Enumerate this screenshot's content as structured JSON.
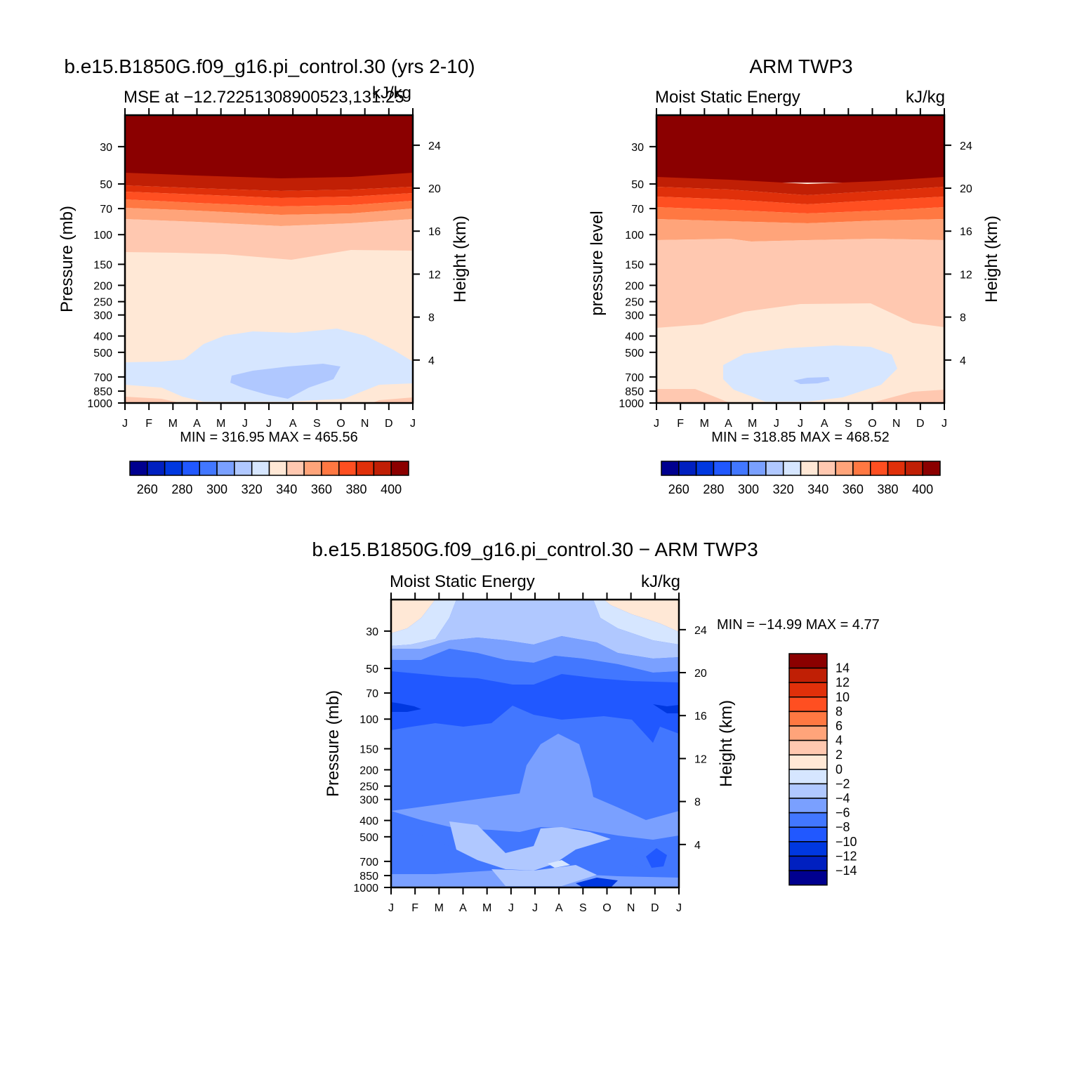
{
  "palette": [
    "#00008f",
    "#0020c0",
    "#0038e0",
    "#2158ff",
    "#4277ff",
    "#7aa0ff",
    "#b0c8ff",
    "#d6e6ff",
    "#ffe8d6",
    "#ffc8b0",
    "#ffa47a",
    "#ff7842",
    "#ff4f21",
    "#e0300a",
    "#c01f05",
    "#8b0000"
  ],
  "panels": [
    {
      "title": "b.e15.B1850G.f09_g16.pi_control.30 (yrs 2-10)",
      "sub_left": "MSE at −12.72251308900523,131.25",
      "sub_right": "kJ/kg",
      "ylabel": "Pressure (mb)",
      "y2label": "Height (km)",
      "stats": "MIN = 316.95 MAX = 465.56",
      "colorbar_labels": [
        "260",
        "280",
        "300",
        "320",
        "340",
        "360",
        "380",
        "400"
      ]
    },
    {
      "title": "ARM TWP3",
      "sub_left": "Moist Static Energy",
      "sub_right": "kJ/kg",
      "ylabel": "pressure level",
      "y2label": "Height (km)",
      "stats": "MIN = 318.85 MAX = 468.52",
      "colorbar_labels": [
        "260",
        "280",
        "300",
        "320",
        "340",
        "360",
        "380",
        "400"
      ]
    },
    {
      "title": "b.e15.B1850G.f09_g16.pi_control.30 − ARM TWP3",
      "sub_left": "Moist Static Energy",
      "sub_right": "kJ/kg",
      "ylabel": "Pressure (mb)",
      "y2label": "Height (km)",
      "stats": "MIN = −14.99 MAX =    4.77",
      "colorbar_labels": [
        "14",
        "12",
        "10",
        "8",
        "6",
        "4",
        "2",
        "0",
        "−2",
        "−4",
        "−6",
        "−8",
        "−10",
        "−12",
        "−14"
      ]
    }
  ],
  "axes": {
    "months": [
      "J",
      "F",
      "M",
      "A",
      "M",
      "J",
      "J",
      "A",
      "S",
      "O",
      "N",
      "D",
      "J"
    ],
    "pressure_ticks": [
      "30",
      "50",
      "70",
      "100",
      "150",
      "200",
      "250",
      "300",
      "400",
      "500",
      "700",
      "850",
      "1000"
    ],
    "height_ticks": [
      "24",
      "20",
      "16",
      "12",
      "8",
      "4"
    ]
  },
  "chart_data": [
    {
      "type": "heatmap",
      "title": "b.e15.B1850G.f09_g16.pi_control.30 (yrs 2-10)",
      "subtitle": "MSE at −12.72251308900523,131.25",
      "units": "kJ/kg",
      "xlabel": "",
      "ylabel": "Pressure (mb)",
      "y2label": "Height (km)",
      "x_categories": [
        "J",
        "F",
        "M",
        "A",
        "M",
        "J",
        "J",
        "A",
        "S",
        "O",
        "N",
        "D",
        "J"
      ],
      "y_pressure_mb": [
        30,
        50,
        70,
        100,
        150,
        200,
        250,
        300,
        400,
        500,
        700,
        850,
        1000
      ],
      "y2_height_km": [
        24,
        20,
        16,
        12,
        8,
        4
      ],
      "min": 316.95,
      "max": 465.56,
      "contour_levels": [
        260,
        270,
        280,
        290,
        300,
        310,
        320,
        330,
        340,
        350,
        360,
        370,
        380,
        390,
        400
      ],
      "boundaries_by_month": [
        {
          "level": 400,
          "p_mb": [
            51,
            51,
            53,
            54,
            55,
            56,
            56,
            56,
            55,
            54,
            53,
            52,
            51
          ]
        },
        {
          "level": 390,
          "p_mb": [
            58,
            58,
            60,
            61,
            62,
            63,
            63,
            63,
            62,
            61,
            60,
            59,
            58
          ]
        },
        {
          "level": 380,
          "p_mb": [
            66,
            66,
            68,
            69,
            71,
            72,
            72,
            72,
            71,
            70,
            68,
            67,
            66
          ]
        },
        {
          "level": 370,
          "p_mb": [
            74,
            74,
            76,
            78,
            80,
            81,
            81,
            81,
            80,
            78,
            76,
            75,
            74
          ]
        },
        {
          "level": 360,
          "p_mb": [
            85,
            85,
            87,
            89,
            91,
            93,
            93,
            93,
            91,
            89,
            87,
            86,
            85
          ]
        },
        {
          "level": 350,
          "p_mb": [
            95,
            95,
            98,
            100,
            102,
            104,
            105,
            105,
            103,
            101,
            99,
            97,
            95
          ]
        },
        {
          "level": 340,
          "p_mb": [
            145,
            148,
            150,
            148,
            145,
            140,
            135,
            138,
            135,
            132,
            135,
            140,
            145
          ]
        },
        {
          "level": 330,
          "p_mb": [
            595,
            595,
            575,
            520,
            430,
            410,
            405,
            410,
            400,
            415,
            460,
            550,
            595
          ]
        },
        {
          "level": 320,
          "p_mb": [
            1000,
            1000,
            1000,
            1000,
            760,
            660,
            650,
            680,
            660,
            670,
            1000,
            1000,
            1000
          ]
        }
      ]
    },
    {
      "type": "heatmap",
      "title": "ARM TWP3",
      "subtitle": "Moist Static Energy",
      "units": "kJ/kg",
      "xlabel": "",
      "ylabel": "pressure level",
      "y2label": "Height (km)",
      "x_categories": [
        "J",
        "F",
        "M",
        "A",
        "M",
        "J",
        "J",
        "A",
        "S",
        "O",
        "N",
        "D",
        "J"
      ],
      "y_pressure_mb": [
        30,
        50,
        70,
        100,
        150,
        200,
        250,
        300,
        400,
        500,
        700,
        850,
        1000
      ],
      "y2_height_km": [
        24,
        20,
        16,
        12,
        8,
        4
      ],
      "min": 318.85,
      "max": 468.52,
      "contour_levels": [
        260,
        270,
        280,
        290,
        300,
        310,
        320,
        330,
        340,
        350,
        360,
        370,
        380,
        390,
        400
      ],
      "boundaries_by_month": [
        {
          "level": 400,
          "p_mb": [
            54,
            54,
            55,
            57,
            58,
            59,
            59,
            59,
            58,
            57,
            56,
            55,
            54
          ]
        },
        {
          "level": 390,
          "p_mb": [
            63,
            63,
            64,
            66,
            68,
            69,
            70,
            70,
            68,
            66,
            65,
            64,
            63
          ]
        },
        {
          "level": 380,
          "p_mb": [
            73,
            73,
            75,
            77,
            79,
            81,
            82,
            82,
            80,
            77,
            75,
            74,
            73
          ]
        },
        {
          "level": 370,
          "p_mb": [
            85,
            85,
            87,
            89,
            92,
            94,
            95,
            95,
            93,
            90,
            87,
            86,
            85
          ]
        },
        {
          "level": 360,
          "p_mb": [
            98,
            98,
            100,
            102,
            104,
            106,
            107,
            107,
            105,
            103,
            101,
            99,
            98
          ]
        },
        {
          "level": 350,
          "p_mb": [
            132,
            132,
            133,
            134,
            136,
            138,
            134,
            134,
            134,
            134,
            133,
            132,
            132
          ]
        },
        {
          "level": 340,
          "p_mb": [
            385,
            375,
            365,
            335,
            310,
            305,
            295,
            300,
            300,
            290,
            320,
            365,
            385
          ]
        },
        {
          "level": 330,
          "p_mb": [
            860,
            860,
            860,
            860,
            1000,
            1000,
            1000,
            1000,
            1000,
            990,
            870,
            860,
            860
          ]
        }
      ]
    },
    {
      "type": "heatmap",
      "title": "b.e15.B1850G.f09_g16.pi_control.30 − ARM TWP3",
      "subtitle": "Moist Static Energy",
      "units": "kJ/kg",
      "xlabel": "",
      "ylabel": "Pressure (mb)",
      "y2label": "Height (km)",
      "x_categories": [
        "J",
        "F",
        "M",
        "A",
        "M",
        "J",
        "J",
        "A",
        "S",
        "O",
        "N",
        "D",
        "J"
      ],
      "y_pressure_mb": [
        30,
        50,
        70,
        100,
        150,
        200,
        250,
        300,
        400,
        500,
        700,
        850,
        1000
      ],
      "y2_height_km": [
        24,
        20,
        16,
        12,
        8,
        4
      ],
      "min": -14.99,
      "max": 4.77,
      "contour_levels": [
        -14,
        -12,
        -10,
        -8,
        -6,
        -4,
        -2,
        0,
        2,
        4,
        6,
        8,
        10,
        12,
        14
      ],
      "boundaries_by_month": [
        {
          "level": 0,
          "p_mb": [
            36,
            34,
            32,
            24,
            24,
            24,
            24,
            24,
            24,
            24,
            32,
            34,
            36
          ]
        },
        {
          "level": -2,
          "p_mb": [
            44,
            42,
            38,
            32,
            30,
            30,
            32,
            30,
            30,
            33,
            38,
            42,
            44
          ]
        },
        {
          "level": -4,
          "p_mb": [
            52,
            52,
            50,
            44,
            42,
            42,
            40,
            38,
            40,
            44,
            50,
            52,
            52
          ]
        },
        {
          "level": -6,
          "p_mb": [
            61,
            62,
            64,
            62,
            60,
            58,
            56,
            54,
            55,
            58,
            62,
            64,
            61
          ]
        },
        {
          "level": -8,
          "p_mb": [
            96,
            98,
            96,
            94,
            92,
            90,
            92,
            90,
            90,
            92,
            94,
            96,
            96
          ]
        },
        {
          "level": -10,
          "p_mb": [
            135,
            130,
            125,
            118,
            112,
            110,
            112,
            110,
            110,
            115,
            120,
            125,
            135
          ]
        },
        {
          "level": -8,
          "p_mb": [
            380,
            380,
            360,
            330,
            300,
            310,
            200,
            160,
            210,
            300,
            340,
            400,
            380
          ]
        },
        {
          "level": -6,
          "p_mb": [
            950,
            900,
            880,
            870,
            870,
            880,
            880,
            870,
            880,
            900,
            880,
            900,
            950
          ]
        }
      ]
    }
  ]
}
